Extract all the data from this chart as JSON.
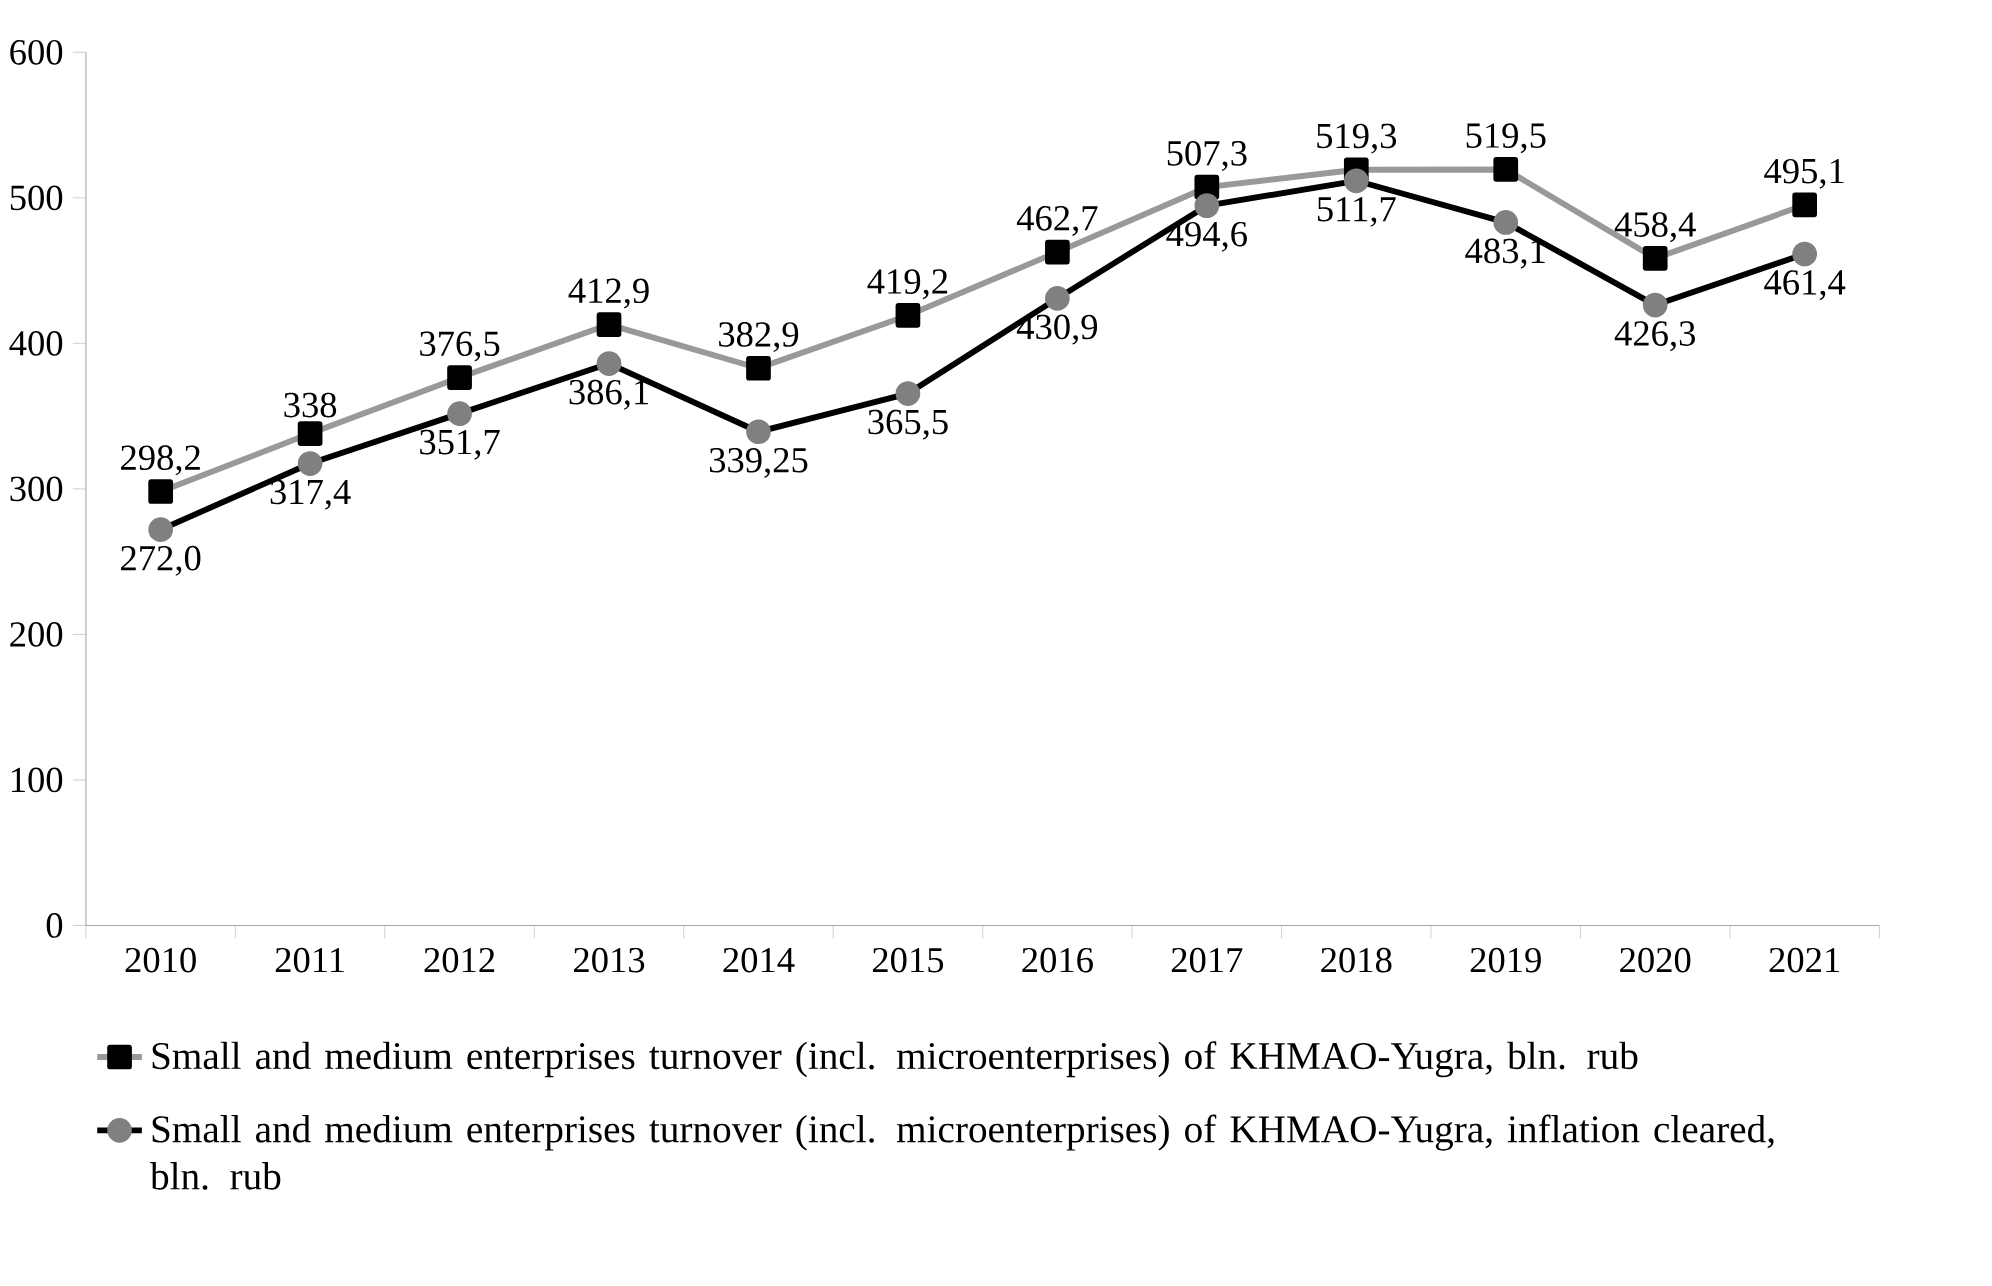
{
  "chart_data": {
    "type": "line",
    "categories": [
      "2010",
      "2011",
      "2012",
      "2013",
      "2014",
      "2015",
      "2016",
      "2017",
      "2018",
      "2019",
      "2020",
      "2021"
    ],
    "ylim": [
      0,
      600
    ],
    "yticks": [
      0,
      100,
      200,
      300,
      400,
      500,
      600
    ],
    "legend": "bottom",
    "series": [
      {
        "name": "Small and medium enterprises turnover (incl. microenterprises) of KHMAO-Yugra, bln. rub",
        "color": "#999999",
        "marker": "square",
        "colors": [
          "#000000",
          "#000000",
          "#000000",
          "#000000",
          "#000000",
          "#000000",
          "#000000",
          "#000000",
          "#000000",
          "#000000",
          "#000000",
          "#000000"
        ],
        "values": [
          298.2,
          338,
          376.5,
          412.9,
          382.9,
          419.2,
          462.7,
          507.3,
          519.3,
          519.5,
          458.4,
          495.1
        ],
        "value_labels": [
          "298,2",
          "338",
          "376,5",
          "412,9",
          "382,9",
          "419,2",
          "462,7",
          "507,3",
          "519,3",
          "519,5",
          "458,4",
          "495,1"
        ]
      },
      {
        "name": "Small and medium enterprises turnover (incl. microenterprises) of KHMAO-Yugra, inflation cleared, bln. rub",
        "color": "#000000",
        "marker": "circle",
        "colors": [
          "#808080",
          "#808080",
          "#808080",
          "#808080",
          "#808080",
          "#808080",
          "#808080",
          "#808080",
          "#808080",
          "#808080",
          "#808080",
          "#808080"
        ],
        "values": [
          272.0,
          317.4,
          351.7,
          386.1,
          339.25,
          365.5,
          430.9,
          494.6,
          511.7,
          483.1,
          426.3,
          461.4
        ],
        "value_labels": [
          "272,0",
          "317,4",
          "351,7",
          "386,1",
          "339,25",
          "365,5",
          "430,9",
          "494,6",
          "511,7",
          "483,1",
          "426,3",
          "461,4"
        ]
      }
    ]
  }
}
